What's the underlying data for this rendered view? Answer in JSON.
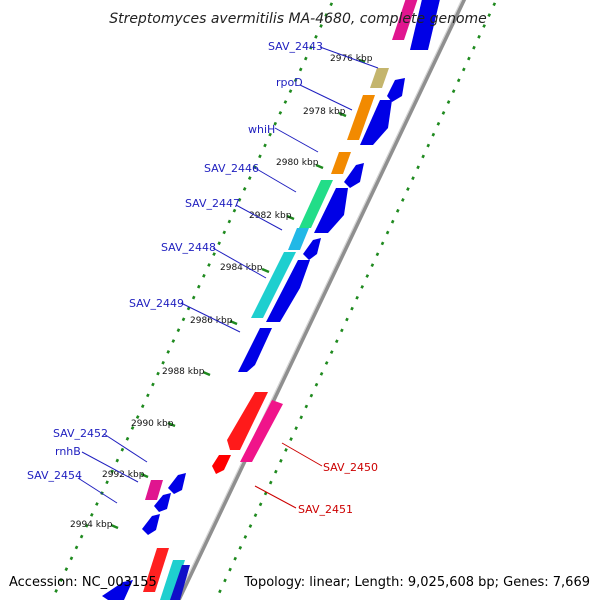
{
  "title": "Streptomyces avermitilis MA-4680, complete genome",
  "footer": {
    "accession": "Accession: NC_003155",
    "summary": "Topology: linear; Length: 9,025,608 bp; Genes: 7,669"
  },
  "colors": {
    "backbone": "#8c8c8c",
    "dots": "#1f8a1f",
    "forward_label": "#1f1fbf",
    "reverse_label": "#cc0000"
  },
  "ruler": [
    {
      "label": "2976 kbp",
      "pos": 2976
    },
    {
      "label": "2978 kbp",
      "pos": 2978
    },
    {
      "label": "2980 kbp",
      "pos": 2980
    },
    {
      "label": "2982 kbp",
      "pos": 2982
    },
    {
      "label": "2984 kbp",
      "pos": 2984
    },
    {
      "label": "2986 kbp",
      "pos": 2986
    },
    {
      "label": "2988 kbp",
      "pos": 2988
    },
    {
      "label": "2990 kbp",
      "pos": 2990
    },
    {
      "label": "2992 kbp",
      "pos": 2992
    },
    {
      "label": "2994 kbp",
      "pos": 2994
    }
  ],
  "labels": [
    {
      "text": "SAV_2443",
      "strand": "forward",
      "color": "#1f1fbf"
    },
    {
      "text": "rpoD",
      "strand": "forward",
      "color": "#1f1fbf"
    },
    {
      "text": "whiH",
      "strand": "forward",
      "color": "#1f1fbf"
    },
    {
      "text": "SAV_2446",
      "strand": "forward",
      "color": "#1f1fbf"
    },
    {
      "text": "SAV_2447",
      "strand": "forward",
      "color": "#1f1fbf"
    },
    {
      "text": "SAV_2448",
      "strand": "forward",
      "color": "#1f1fbf"
    },
    {
      "text": "SAV_2449",
      "strand": "forward",
      "color": "#1f1fbf"
    },
    {
      "text": "SAV_2452",
      "strand": "forward",
      "color": "#1f1fbf"
    },
    {
      "text": "rnhB",
      "strand": "forward",
      "color": "#1f1fbf"
    },
    {
      "text": "SAV_2454",
      "strand": "forward",
      "color": "#1f1fbf"
    },
    {
      "text": "SAV_2450",
      "strand": "reverse",
      "color": "#cc0000"
    },
    {
      "text": "SAV_2451",
      "strand": "reverse",
      "color": "#cc0000"
    }
  ]
}
